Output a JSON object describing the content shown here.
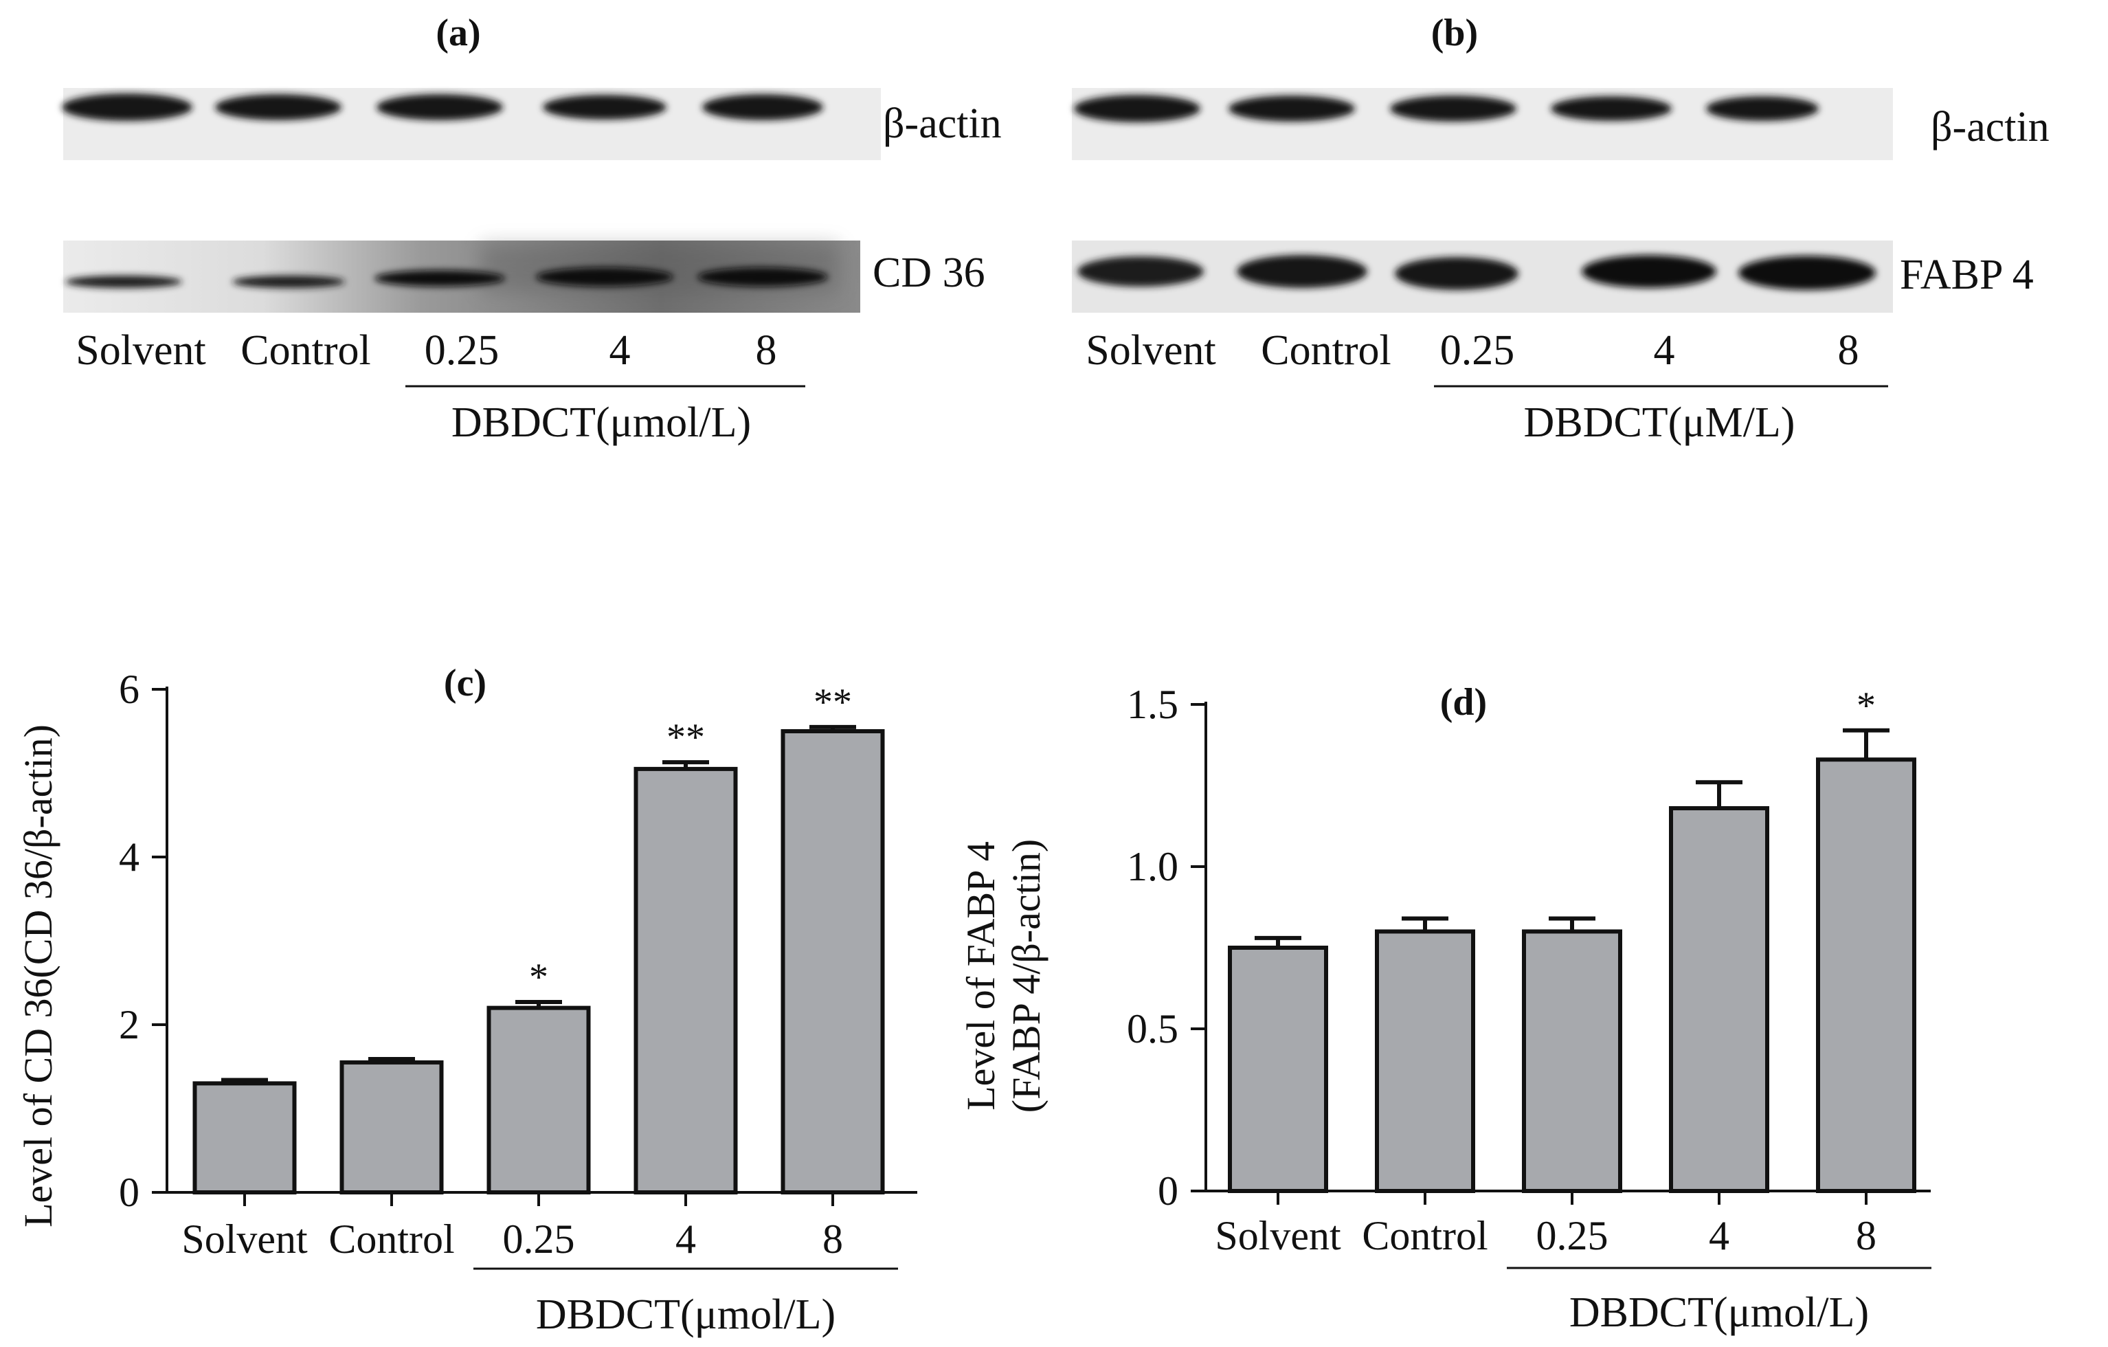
{
  "blots": [
    {
      "panel": "(a)",
      "bands": [
        "β-actin",
        "CD 36"
      ],
      "lanes": [
        "Solvent",
        "Control",
        "0.25",
        "4",
        "8"
      ],
      "group_label": "DBDCT(μmol/L)"
    },
    {
      "panel": "(b)",
      "bands": [
        "β-actin",
        "FABP 4"
      ],
      "lanes": [
        "Solvent",
        "Control",
        "0.25",
        "4",
        "8"
      ],
      "group_label": "DBDCT(μM/L)"
    }
  ],
  "chart_data": [
    {
      "type": "bar",
      "title": "(c)",
      "categories": [
        "Solvent",
        "Control",
        "0.25",
        "4",
        "8"
      ],
      "values": [
        1.3,
        1.55,
        2.2,
        5.05,
        5.5
      ],
      "errors": [
        0.04,
        0.04,
        0.07,
        0.08,
        0.05
      ],
      "significance": [
        "",
        "",
        "*",
        "**",
        "**"
      ],
      "ylabel": "Level of CD 36(CD 36/β-actin)",
      "ylabel_lines": [
        "Level of CD 36(CD 36/β-actin)"
      ],
      "group_label": "DBDCT(μmol/L)",
      "ylim": [
        0,
        6
      ],
      "yticks": [
        0,
        2,
        4,
        6
      ],
      "ytick_labels": [
        "0",
        "2",
        "4",
        "6"
      ],
      "bar_color": "#a7a9ad"
    },
    {
      "type": "bar",
      "title": "(d)",
      "categories": [
        "Solvent",
        "Control",
        "0.25",
        "4",
        "8"
      ],
      "values": [
        0.75,
        0.8,
        0.8,
        1.18,
        1.33
      ],
      "errors": [
        0.03,
        0.04,
        0.04,
        0.08,
        0.09
      ],
      "significance": [
        "",
        "",
        "",
        "",
        "*"
      ],
      "ylabel": "Level of FABP 4 (FABP 4/β-actin)",
      "ylabel_lines": [
        "Level of FABP 4",
        "(FABP 4/β-actin)"
      ],
      "group_label": "DBDCT(μmol/L)",
      "ylim": [
        0,
        1.5
      ],
      "yticks": [
        0,
        0.5,
        1.0,
        1.5
      ],
      "ytick_labels": [
        "0",
        "0.5",
        "1.0",
        "1.5"
      ],
      "bar_color": "#a7a9ad"
    }
  ]
}
